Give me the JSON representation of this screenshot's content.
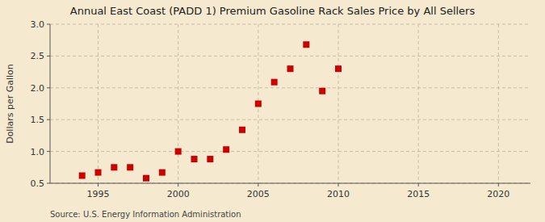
{
  "chart_data": {
    "type": "scatter",
    "title": "Annual East Coast (PADD 1) Premium Gasoline Rack Sales Price by All Sellers",
    "y_label": "Dollars per Gallon",
    "annotations": [
      "Source: U.S. Energy Information Administration"
    ],
    "x": [
      1994,
      1995,
      1996,
      1997,
      1998,
      1999,
      2000,
      2001,
      2002,
      2003,
      2004,
      2005,
      2006,
      2007,
      2008,
      2009,
      2010
    ],
    "values": [
      0.62,
      0.67,
      0.75,
      0.75,
      0.58,
      0.67,
      1.0,
      0.88,
      0.88,
      1.03,
      1.34,
      1.75,
      2.09,
      2.3,
      2.68,
      1.95,
      2.3
    ],
    "color": "#cc0000",
    "marker": "square",
    "xlim": [
      1992,
      2022
    ],
    "ylim": [
      0.5,
      3.0
    ],
    "xticks": [
      1995,
      2000,
      2005,
      2010,
      2015,
      2020
    ],
    "yticks": [
      0.5,
      {
        "value": 1.0,
        "label": "1.0"
      },
      1.5,
      {
        "value": 2.0,
        "label": "2.0"
      },
      2.5,
      {
        "value": 3.0,
        "label": "3.0"
      }
    ],
    "grid": true
  }
}
